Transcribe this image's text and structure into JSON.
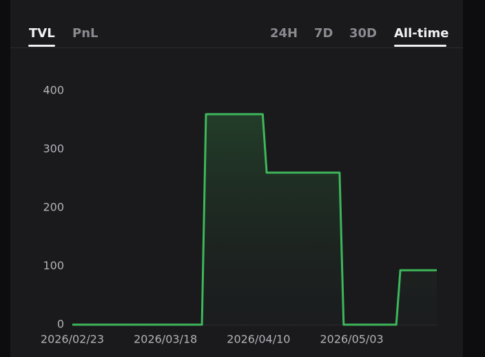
{
  "tabs": {
    "metric": [
      "TVL",
      "PnL"
    ],
    "range": [
      "24H",
      "7D",
      "30D",
      "All-time"
    ]
  },
  "chart_data": {
    "type": "line",
    "x": [
      "2026/02/23",
      "2026/03/27",
      "2026/03/28",
      "2026/04/11",
      "2026/04/12",
      "2026/04/30",
      "2026/05/01",
      "2026/05/14",
      "2026/05/15",
      "2026/05/24"
    ],
    "values": [
      0,
      0,
      360,
      360,
      260,
      260,
      0,
      0,
      93,
      93
    ],
    "color": "#3db85a",
    "xlim": [
      "2026/02/23",
      "2026/05/24"
    ],
    "xticks": [
      "2026/02/23",
      "2026/03/18",
      "2026/04/10",
      "2026/05/03"
    ],
    "ylim": [
      0,
      400
    ],
    "yticks": [
      0,
      100,
      200,
      300,
      400
    ]
  }
}
